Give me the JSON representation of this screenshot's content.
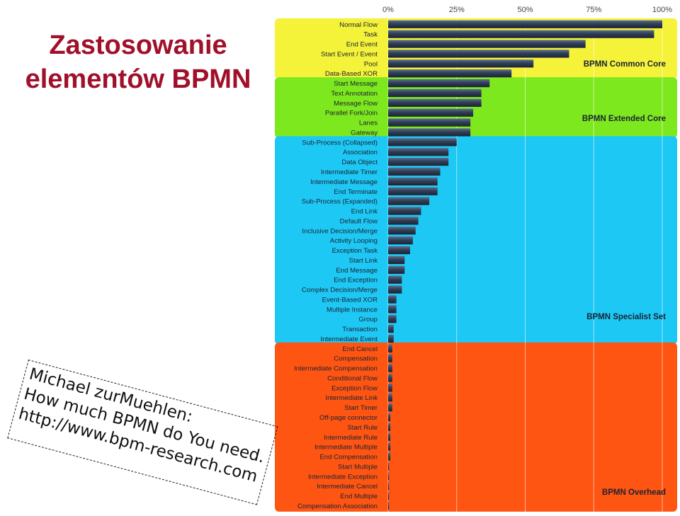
{
  "slide": {
    "title_lines": [
      "Zastosowanie",
      "elementów BPMN"
    ],
    "citation_lines": [
      "Michael zurMuehlen:",
      "How much BPMN do You need.",
      "http://www.bpm-research.com"
    ]
  },
  "chart_data": {
    "type": "bar",
    "orientation": "horizontal",
    "x_axis": {
      "ticks": [
        "0%",
        "25%",
        "50%",
        "75%",
        "100%"
      ],
      "range": [
        0,
        100
      ],
      "position": "top"
    },
    "grid": true,
    "bar_color": "#2f3f57",
    "groups": [
      {
        "name": "BPMN Common Core",
        "color": "#f5f23a",
        "start": 0,
        "end": 6
      },
      {
        "name": "BPMN Extended Core",
        "color": "#7ee81e",
        "start": 6,
        "end": 12
      },
      {
        "name": "BPMN Specialist Set",
        "color": "#1ec8f4",
        "start": 12,
        "end": 33
      },
      {
        "name": "BPMN Overhead",
        "color": "#ff5512",
        "start": 33,
        "end": 50
      }
    ],
    "categories": [
      "Normal Flow",
      "Task",
      "End Event",
      "Start Event / Event",
      "Pool",
      "Data-Based XOR",
      "Start Message",
      "Text Annotation",
      "Message Flow",
      "Parallel Fork/Join",
      "Lanes",
      "Gateway",
      "Sub-Process (Collapsed)",
      "Association",
      "Data Object",
      "Intermediate Timer",
      "Intermediate Message",
      "End Terminate",
      "Sub-Process (Expanded)",
      "End Link",
      "Default Flow",
      "Inclusive Decision/Merge",
      "Activity Looping",
      "Exception Task",
      "Start Link",
      "End Message",
      "End Exception",
      "Complex Decision/Merge",
      "Event-Based XOR",
      "Multiple Instance",
      "Group",
      "Transaction",
      "Intermediate Event",
      "End Cancel",
      "Compensation",
      "Intermediate Compensation",
      "Conditional Flow",
      "Exception Flow",
      "Intermediate Link",
      "Start Timer",
      "Off-page connector",
      "Start Rule",
      "Intermediate Rule",
      "Intermediate Multiple",
      "End Compensation",
      "Start Multiple",
      "Intermediate Exception",
      "Intermediate Cancel",
      "End Multiple",
      "Compensation Association"
    ],
    "values": [
      100,
      97,
      72,
      66,
      53,
      45,
      37,
      34,
      34,
      31,
      30,
      30,
      25,
      22,
      22,
      19,
      18,
      18,
      15,
      12,
      11,
      10,
      9,
      8,
      6,
      6,
      5,
      5,
      3,
      3,
      3,
      2,
      2,
      1.5,
      1.5,
      1.5,
      1.5,
      1.5,
      1.5,
      1.5,
      0.8,
      0.8,
      0.8,
      0.8,
      0.8,
      0.3,
      0.3,
      0.3,
      0.3,
      0.3
    ]
  }
}
